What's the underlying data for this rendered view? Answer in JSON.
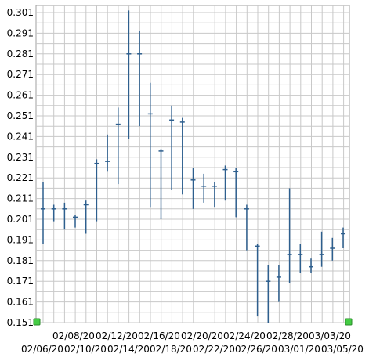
{
  "chart_data": {
    "type": "ohlc",
    "title": "",
    "xlabel": "",
    "ylabel": "",
    "ylim": [
      0.151,
      0.301
    ],
    "grid": true,
    "y_ticks": [
      "0.301",
      "0.291",
      "0.281",
      "0.271",
      "0.261",
      "0.251",
      "0.241",
      "0.231",
      "0.221",
      "0.211",
      "0.201",
      "0.191",
      "0.181",
      "0.171",
      "0.161",
      "0.151"
    ],
    "x_labels_top": [
      "02/08/20",
      "02/12/20",
      "02/16/20",
      "02/20/20",
      "02/24/20",
      "02/28/20",
      "03/03/20"
    ],
    "x_labels_bottom": [
      "02/06/20",
      "02/10/20",
      "02/14/20",
      "02/18/20",
      "02/22/20",
      "02/26/20",
      "03/01/20",
      "03/05/20"
    ],
    "colors": {
      "bar": "#2e5f8e",
      "grid": "#c8c8c8",
      "frame": "#a0a0a0",
      "handle": "#44cc44"
    },
    "bars": [
      {
        "date": "02/06/20",
        "open": 0.206,
        "high": 0.219,
        "low": 0.189,
        "close": 0.206
      },
      {
        "date": "02/07/20",
        "open": 0.206,
        "high": 0.208,
        "low": 0.2,
        "close": 0.206
      },
      {
        "date": "02/08/20",
        "open": 0.206,
        "high": 0.209,
        "low": 0.196,
        "close": 0.206
      },
      {
        "date": "02/09/20",
        "open": 0.202,
        "high": 0.203,
        "low": 0.197,
        "close": 0.202
      },
      {
        "date": "02/10/20",
        "open": 0.208,
        "high": 0.21,
        "low": 0.194,
        "close": 0.208
      },
      {
        "date": "02/11/20",
        "open": 0.228,
        "high": 0.23,
        "low": 0.2,
        "close": 0.228
      },
      {
        "date": "02/12/20",
        "open": 0.229,
        "high": 0.242,
        "low": 0.224,
        "close": 0.229
      },
      {
        "date": "02/13/20",
        "open": 0.247,
        "high": 0.255,
        "low": 0.218,
        "close": 0.247
      },
      {
        "date": "02/14/20",
        "open": 0.281,
        "high": 0.302,
        "low": 0.24,
        "close": 0.281
      },
      {
        "date": "02/15/20",
        "open": 0.281,
        "high": 0.292,
        "low": 0.246,
        "close": 0.281
      },
      {
        "date": "02/16/20",
        "open": 0.252,
        "high": 0.267,
        "low": 0.207,
        "close": 0.252
      },
      {
        "date": "02/17/20",
        "open": 0.234,
        "high": 0.235,
        "low": 0.201,
        "close": 0.234
      },
      {
        "date": "02/18/20",
        "open": 0.249,
        "high": 0.256,
        "low": 0.215,
        "close": 0.249
      },
      {
        "date": "02/19/20",
        "open": 0.248,
        "high": 0.25,
        "low": 0.213,
        "close": 0.248
      },
      {
        "date": "02/20/20",
        "open": 0.22,
        "high": 0.226,
        "low": 0.206,
        "close": 0.22
      },
      {
        "date": "02/21/20",
        "open": 0.217,
        "high": 0.223,
        "low": 0.209,
        "close": 0.217
      },
      {
        "date": "02/22/20",
        "open": 0.217,
        "high": 0.219,
        "low": 0.207,
        "close": 0.217
      },
      {
        "date": "02/23/20",
        "open": 0.225,
        "high": 0.227,
        "low": 0.21,
        "close": 0.225
      },
      {
        "date": "02/24/20",
        "open": 0.224,
        "high": 0.226,
        "low": 0.202,
        "close": 0.224
      },
      {
        "date": "02/25/20",
        "open": 0.206,
        "high": 0.208,
        "low": 0.186,
        "close": 0.206
      },
      {
        "date": "02/26/20",
        "open": 0.188,
        "high": 0.189,
        "low": 0.154,
        "close": 0.188
      },
      {
        "date": "02/27/20",
        "open": 0.171,
        "high": 0.179,
        "low": 0.151,
        "close": 0.171
      },
      {
        "date": "02/28/20",
        "open": 0.173,
        "high": 0.179,
        "low": 0.161,
        "close": 0.173
      },
      {
        "date": "02/29/20",
        "open": 0.184,
        "high": 0.216,
        "low": 0.17,
        "close": 0.184
      },
      {
        "date": "03/01/20",
        "open": 0.184,
        "high": 0.189,
        "low": 0.175,
        "close": 0.184
      },
      {
        "date": "03/02/20",
        "open": 0.178,
        "high": 0.182,
        "low": 0.175,
        "close": 0.178
      },
      {
        "date": "03/03/20",
        "open": 0.184,
        "high": 0.195,
        "low": 0.178,
        "close": 0.184
      },
      {
        "date": "03/04/20",
        "open": 0.187,
        "high": 0.192,
        "low": 0.181,
        "close": 0.187
      },
      {
        "date": "03/05/20",
        "open": 0.194,
        "high": 0.197,
        "low": 0.187,
        "close": 0.194
      }
    ]
  }
}
